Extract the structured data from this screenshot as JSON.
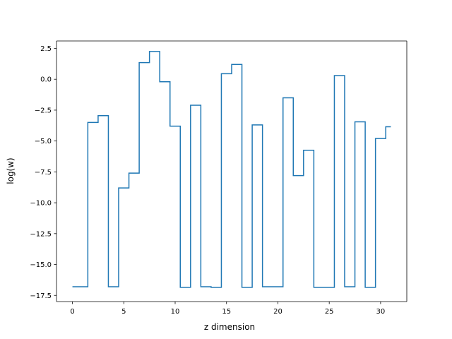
{
  "chart_data": {
    "type": "line",
    "drawstyle": "steps-mid",
    "title": "",
    "xlabel": "z dimension",
    "ylabel": "log(w)",
    "xlim": [
      -1.55,
      32.55
    ],
    "ylim": [
      -18.0,
      3.1
    ],
    "xticks": [
      0,
      5,
      10,
      15,
      20,
      25,
      30
    ],
    "xtick_labels": [
      "0",
      "5",
      "10",
      "15",
      "20",
      "25",
      "30"
    ],
    "yticks": [
      2.5,
      0.0,
      -2.5,
      -5.0,
      -7.5,
      -10.0,
      -12.5,
      -15.0,
      -17.5
    ],
    "ytick_labels": [
      "2.5",
      "0.0",
      "−2.5",
      "−5.0",
      "−7.5",
      "−10.0",
      "−12.5",
      "−15.0",
      "−17.5"
    ],
    "grid": false,
    "legend": "none",
    "series": [
      {
        "color": "#1f77b4",
        "x": [
          0,
          1,
          2,
          3,
          4,
          5,
          6,
          7,
          8,
          9,
          10,
          11,
          12,
          13,
          14,
          15,
          16,
          17,
          18,
          19,
          20,
          21,
          22,
          23,
          24,
          25,
          26,
          27,
          28,
          29,
          30,
          31
        ],
        "values": [
          -16.8,
          -16.8,
          -3.5,
          -2.95,
          -16.8,
          -8.8,
          -7.6,
          1.35,
          2.25,
          -0.2,
          -3.8,
          -16.85,
          -2.1,
          -16.8,
          -16.85,
          0.45,
          1.2,
          -16.85,
          -3.7,
          -16.8,
          -16.8,
          -1.5,
          -7.8,
          -5.75,
          -16.85,
          -16.85,
          0.3,
          -16.8,
          -3.45,
          -16.85,
          -4.8,
          -3.85
        ]
      }
    ]
  }
}
